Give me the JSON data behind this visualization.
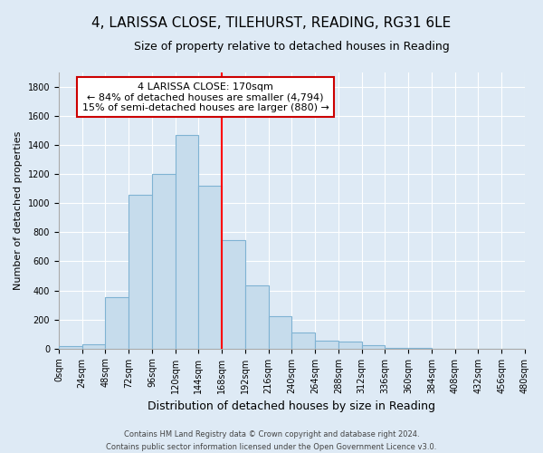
{
  "title": "4, LARISSA CLOSE, TILEHURST, READING, RG31 6LE",
  "subtitle": "Size of property relative to detached houses in Reading",
  "xlabel": "Distribution of detached houses by size in Reading",
  "ylabel": "Number of detached properties",
  "bin_edges": [
    0,
    24,
    48,
    72,
    96,
    120,
    144,
    168,
    192,
    216,
    240,
    264,
    288,
    312,
    336,
    360,
    384,
    408,
    432,
    456,
    480
  ],
  "bar_heights": [
    15,
    30,
    355,
    1060,
    1200,
    1470,
    1120,
    745,
    435,
    225,
    110,
    55,
    50,
    20,
    5,
    3,
    1,
    0,
    0,
    0
  ],
  "bar_color": "#c6dcec",
  "bar_edge_color": "#7fb3d3",
  "vline_x": 168,
  "vline_color": "red",
  "annotation_title": "4 LARISSA CLOSE: 170sqm",
  "annotation_line1": "← 84% of detached houses are smaller (4,794)",
  "annotation_line2": "15% of semi-detached houses are larger (880) →",
  "annotation_box_facecolor": "white",
  "annotation_box_edgecolor": "#cc0000",
  "tick_labels": [
    "0sqm",
    "24sqm",
    "48sqm",
    "72sqm",
    "96sqm",
    "120sqm",
    "144sqm",
    "168sqm",
    "192sqm",
    "216sqm",
    "240sqm",
    "264sqm",
    "288sqm",
    "312sqm",
    "336sqm",
    "360sqm",
    "384sqm",
    "408sqm",
    "432sqm",
    "456sqm",
    "480sqm"
  ],
  "ylim": [
    0,
    1900
  ],
  "yticks": [
    0,
    200,
    400,
    600,
    800,
    1000,
    1200,
    1400,
    1600,
    1800
  ],
  "footer_line1": "Contains HM Land Registry data © Crown copyright and database right 2024.",
  "footer_line2": "Contains public sector information licensed under the Open Government Licence v3.0.",
  "background_color": "#deeaf5",
  "plot_background_color": "#deeaf5",
  "grid_color": "white",
  "title_fontsize": 11,
  "subtitle_fontsize": 9,
  "xlabel_fontsize": 9,
  "ylabel_fontsize": 8,
  "tick_fontsize": 7,
  "annotation_fontsize": 8,
  "footer_fontsize": 6
}
